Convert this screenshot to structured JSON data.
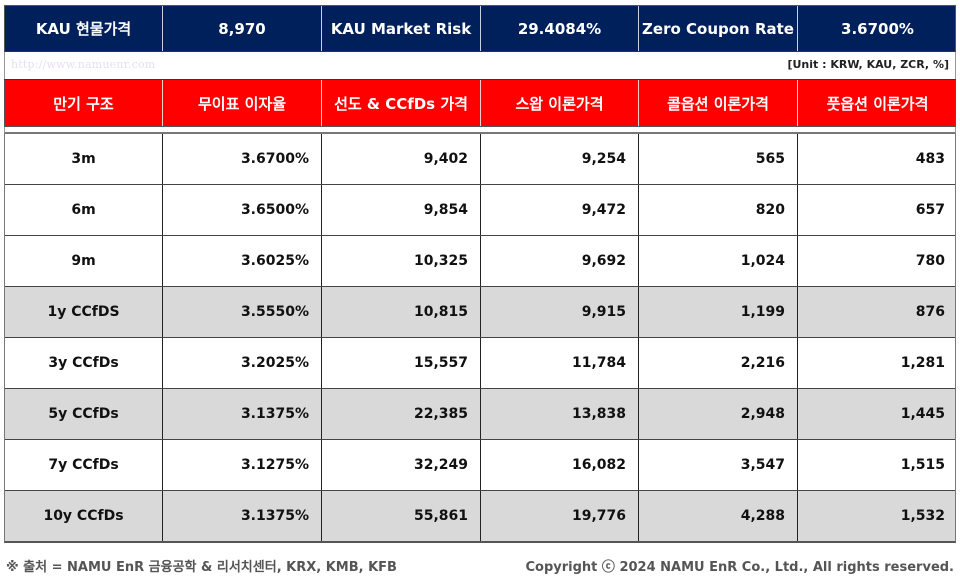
{
  "summary": {
    "items": [
      {
        "label": "KAU 현물가격",
        "value": "8,970"
      },
      {
        "label": "KAU Market Risk",
        "value": "29.4084%"
      },
      {
        "label": "Zero Coupon Rate",
        "value": "3.6700%"
      }
    ]
  },
  "watermark": "http://www.namuenr.com",
  "unit_note": "[Unit : KRW, KAU, ZCR, %]",
  "table": {
    "headers": [
      "만기 구조",
      "무이표 이자율",
      "선도 & CCfDs 가격",
      "스왑 이론가격",
      "콜옵션 이론가격",
      "풋옵션 이론가격"
    ],
    "rows": [
      [
        "3m",
        "3.6700%",
        "9,402",
        "9,254",
        "565",
        "483"
      ],
      [
        "6m",
        "3.6500%",
        "9,854",
        "9,472",
        "820",
        "657"
      ],
      [
        "9m",
        "3.6025%",
        "10,325",
        "9,692",
        "1,024",
        "780"
      ],
      [
        "1y CCfDS",
        "3.5550%",
        "10,815",
        "9,915",
        "1,199",
        "876"
      ],
      [
        "3y CCfDs",
        "3.2025%",
        "15,557",
        "11,784",
        "2,216",
        "1,281"
      ],
      [
        "5y CCfDs",
        "3.1375%",
        "22,385",
        "13,838",
        "2,948",
        "1,445"
      ],
      [
        "7y CCfDs",
        "3.1275%",
        "32,249",
        "16,082",
        "3,547",
        "1,515"
      ],
      [
        "10y CCfDs",
        "3.1375%",
        "55,861",
        "19,776",
        "4,288",
        "1,532"
      ]
    ],
    "shaded_rows": [
      3,
      5,
      7
    ]
  },
  "footer": {
    "source": "※ 출처 = NAMU EnR 금융공학 & 리서치센터, KRX, KMB, KFB",
    "copyright": "Copyright ⓒ 2024 NAMU EnR Co., Ltd., All rights reserved."
  },
  "colors": {
    "summary_bg": "#00205b",
    "header_bg": "#ff0000",
    "shaded_row_bg": "#d9d9d9"
  }
}
